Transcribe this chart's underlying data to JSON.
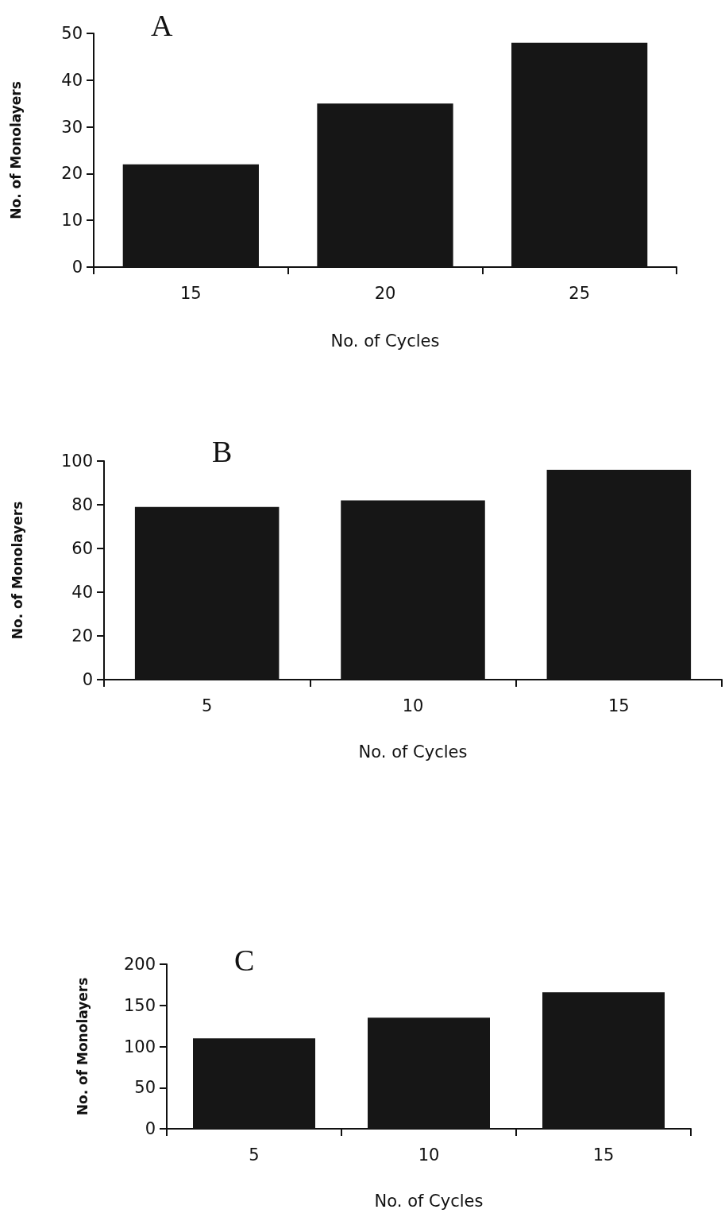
{
  "chart_data": [
    {
      "type": "bar",
      "title": "A",
      "xlabel": "No. of Cycles",
      "ylabel": "No. of Monolayers",
      "categories": [
        "15",
        "20",
        "25"
      ],
      "values": [
        22,
        35,
        48
      ],
      "color": "#161616",
      "ylim": [
        0,
        50
      ],
      "yticks": [
        0,
        10,
        20,
        30,
        40,
        50
      ],
      "grid": false
    },
    {
      "type": "bar",
      "title": "B",
      "xlabel": "No. of Cycles",
      "ylabel": "No. of Monolayers",
      "categories": [
        "5",
        "10",
        "15"
      ],
      "values": [
        79,
        82,
        96
      ],
      "color": "#161616",
      "ylim": [
        0,
        100
      ],
      "yticks": [
        0,
        20,
        40,
        60,
        80,
        100
      ],
      "grid": false
    },
    {
      "type": "bar",
      "title": "C",
      "xlabel": "No. of Cycles",
      "ylabel": "No. of Monolayers",
      "categories": [
        "5",
        "10",
        "15"
      ],
      "values": [
        110,
        135,
        166
      ],
      "color": "#161616",
      "ylim": [
        0,
        200
      ],
      "yticks": [
        0,
        50,
        100,
        150,
        200
      ],
      "grid": false
    }
  ]
}
